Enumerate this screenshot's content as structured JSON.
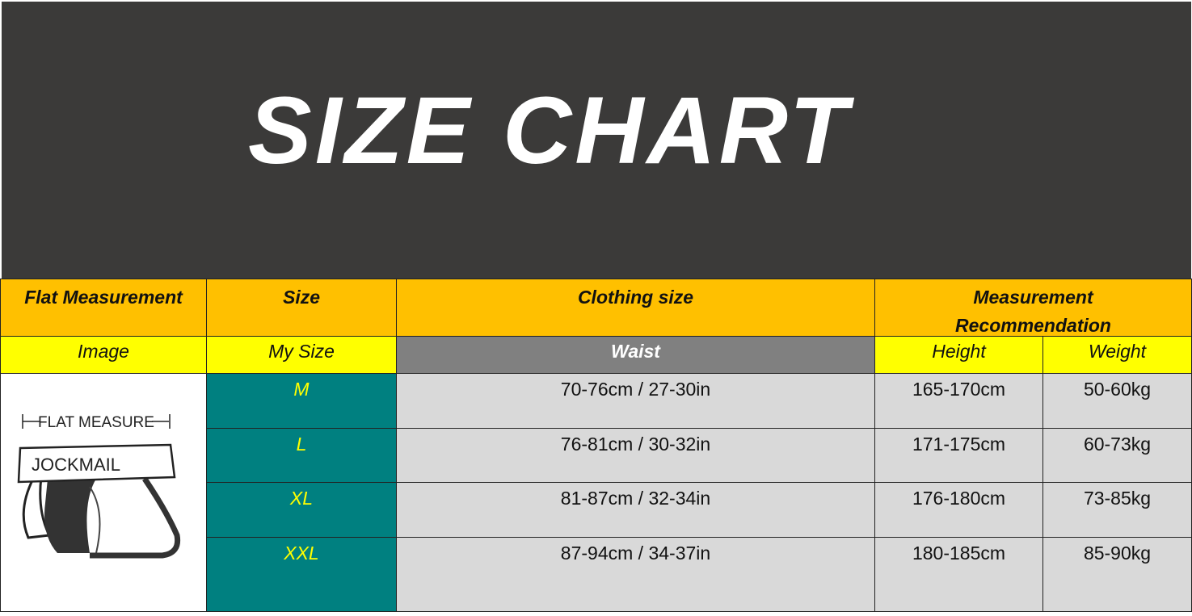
{
  "title": "SIZE CHART",
  "header": {
    "flat_measurement": "Flat Measurement",
    "size": "Size",
    "clothing_size": "Clothing size",
    "measurement_recommendation": "Measurement Recommendation"
  },
  "subheader": {
    "image": "Image",
    "my_size": "My Size",
    "waist": "Waist",
    "height": "Height",
    "weight": "Weight"
  },
  "illustration": {
    "caption": "FLAT MEASURE",
    "brand": "JOCKMAIL"
  },
  "rows": [
    {
      "size": "M",
      "waist": "70-76cm / 27-30in",
      "height": "165-170cm",
      "weight": "50-60kg"
    },
    {
      "size": "L",
      "waist": "76-81cm / 30-32in",
      "height": "171-175cm",
      "weight": "60-73kg"
    },
    {
      "size": "XL",
      "waist": "81-87cm / 32-34in",
      "height": "176-180cm",
      "weight": "73-85kg"
    },
    {
      "size": "XXL",
      "waist": "87-94cm / 34-37in",
      "height": "180-185cm",
      "weight": "85-90kg"
    }
  ],
  "colors": {
    "banner": "#3b3a39",
    "header": "#ffc000",
    "subheader": "#ffff00",
    "size_cell": "#008080",
    "size_text": "#ffff00",
    "waist_header": "#808080",
    "value_cell": "#d9d9d9"
  }
}
